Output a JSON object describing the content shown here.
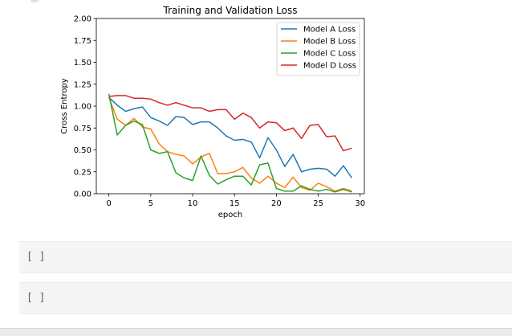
{
  "notebook": {
    "empty_cells": [
      {
        "prompt": "[ ]"
      },
      {
        "prompt": "[ ]"
      }
    ]
  },
  "chart_data": {
    "type": "line",
    "title": "Training and Validation Loss",
    "xlabel": "epoch",
    "ylabel": "Cross Entropy",
    "xlim": [
      -1.5,
      30.5
    ],
    "ylim": [
      0,
      2.0
    ],
    "x_ticks": [
      0,
      5,
      10,
      15,
      20,
      25,
      30
    ],
    "x_tick_labels": [
      "0",
      "5",
      "10",
      "15",
      "20",
      "25",
      "30"
    ],
    "y_ticks": [
      0,
      0.25,
      0.5,
      0.75,
      1.0,
      1.25,
      1.5,
      1.75,
      2.0
    ],
    "y_tick_labels": [
      "0.00",
      "0.25",
      "0.50",
      "0.75",
      "1.00",
      "1.25",
      "1.50",
      "1.75",
      "2.00"
    ],
    "grid": false,
    "legend_position": "top-right",
    "x": [
      0,
      1,
      2,
      3,
      4,
      5,
      6,
      7,
      8,
      9,
      10,
      11,
      12,
      13,
      14,
      15,
      16,
      17,
      18,
      19,
      20,
      21,
      22,
      23,
      24,
      25,
      26,
      27,
      28,
      29
    ],
    "series": [
      {
        "name": "Model A Loss",
        "color": "#1f77b4",
        "values": [
          1.1,
          1.01,
          0.94,
          0.97,
          0.99,
          0.87,
          0.83,
          0.78,
          0.88,
          0.87,
          0.79,
          0.82,
          0.82,
          0.75,
          0.66,
          0.61,
          0.62,
          0.59,
          0.41,
          0.64,
          0.5,
          0.31,
          0.45,
          0.25,
          0.28,
          0.29,
          0.28,
          0.2,
          0.32,
          0.18
        ]
      },
      {
        "name": "Model B Loss",
        "color": "#ff7f0e",
        "values": [
          1.1,
          0.85,
          0.78,
          0.86,
          0.76,
          0.74,
          0.57,
          0.48,
          0.45,
          0.43,
          0.34,
          0.42,
          0.46,
          0.23,
          0.23,
          0.25,
          0.3,
          0.18,
          0.12,
          0.2,
          0.12,
          0.07,
          0.19,
          0.07,
          0.04,
          0.12,
          0.08,
          0.03,
          0.06,
          0.03
        ]
      },
      {
        "name": "Model C Loss",
        "color": "#2ca02c",
        "values": [
          1.14,
          0.67,
          0.78,
          0.83,
          0.79,
          0.5,
          0.46,
          0.48,
          0.24,
          0.18,
          0.15,
          0.43,
          0.21,
          0.11,
          0.16,
          0.2,
          0.2,
          0.1,
          0.33,
          0.35,
          0.06,
          0.03,
          0.03,
          0.09,
          0.05,
          0.03,
          0.05,
          0.02,
          0.05,
          0.02
        ]
      },
      {
        "name": "Model D Loss",
        "color": "#d62728",
        "values": [
          1.11,
          1.12,
          1.12,
          1.09,
          1.09,
          1.08,
          1.04,
          1.01,
          1.04,
          1.01,
          0.98,
          0.98,
          0.94,
          0.96,
          0.96,
          0.85,
          0.92,
          0.87,
          0.75,
          0.82,
          0.81,
          0.72,
          0.75,
          0.63,
          0.78,
          0.79,
          0.65,
          0.66,
          0.49,
          0.52
        ]
      }
    ]
  }
}
